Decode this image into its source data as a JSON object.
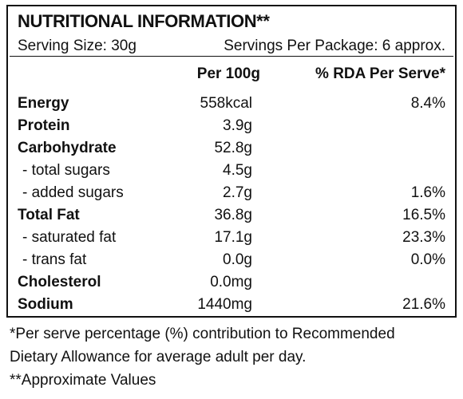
{
  "panel": {
    "title": "NUTRITIONAL INFORMATION**",
    "serving_size": "Serving Size: 30g",
    "servings_per_package": "Servings Per Package: 6 approx.",
    "headers": {
      "per_100g": "Per 100g",
      "rda_per_serve": "% RDA Per Serve*"
    },
    "rows": [
      {
        "label": "Energy",
        "per_100g": "558kcal",
        "rda": "8.4%"
      },
      {
        "label": "Protein",
        "per_100g": "3.9g",
        "rda": ""
      },
      {
        "label": "Carbohydrate",
        "per_100g": "52.8g",
        "rda": ""
      },
      {
        "label": "- total sugars",
        "per_100g": "4.5g",
        "rda": ""
      },
      {
        "label": "- added sugars",
        "per_100g": "2.7g",
        "rda": "1.6%"
      },
      {
        "label": "Total Fat",
        "per_100g": "36.8g",
        "rda": "16.5%"
      },
      {
        "label": "- saturated fat",
        "per_100g": "17.1g",
        "rda": "23.3%"
      },
      {
        "label": "- trans fat",
        "per_100g": "0.0g",
        "rda": "0.0%"
      },
      {
        "label": "Cholesterol",
        "per_100g": "0.0mg",
        "rda": ""
      },
      {
        "label": "Sodium",
        "per_100g": "1440mg",
        "rda": "21.6%"
      }
    ]
  },
  "footnotes": {
    "rda_note_line1": "*Per serve percentage (%) contribution to Recommended",
    "rda_note_line2": "Dietary Allowance for average adult per day.",
    "approx_note": "**Approximate Values"
  }
}
